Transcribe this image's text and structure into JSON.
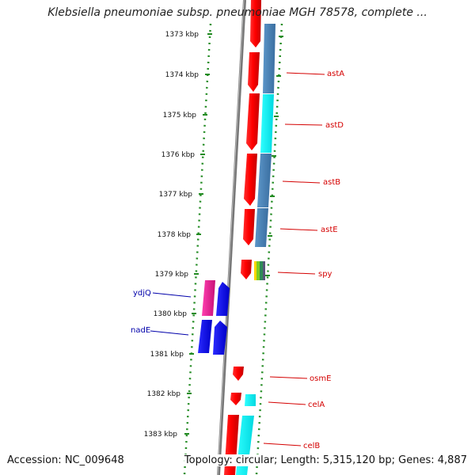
{
  "title": "Klebsiella pneumoniae subsp. pneumoniae MGH 78578, complete ...",
  "footer": {
    "accession": "Accession: NC_009648",
    "summary": "Topology: circular; Length: 5,315,120 bp; Genes: 4,887"
  },
  "ticks": [
    {
      "label": "1373 kbp"
    },
    {
      "label": "1374 kbp"
    },
    {
      "label": "1375 kbp"
    },
    {
      "label": "1376 kbp"
    },
    {
      "label": "1377 kbp"
    },
    {
      "label": "1378 kbp"
    },
    {
      "label": "1379 kbp"
    },
    {
      "label": "1380 kbp"
    },
    {
      "label": "1381 kbp"
    },
    {
      "label": "1382 kbp"
    },
    {
      "label": "1383 kbp"
    }
  ],
  "right_genes": [
    {
      "name": "astA"
    },
    {
      "name": "astD"
    },
    {
      "name": "astB"
    },
    {
      "name": "astE"
    },
    {
      "name": "spy"
    },
    {
      "name": "osmE"
    },
    {
      "name": "celA"
    },
    {
      "name": "celB"
    }
  ],
  "left_genes": [
    {
      "name": "ydjQ"
    },
    {
      "name": "nadE"
    }
  ],
  "colors": {
    "forward_gene": "#ff0000",
    "reverse_gene": "#0000ff",
    "label_right": "#d40000",
    "label_left": "#0000aa",
    "backbone": "#777777",
    "dotted_track": "#228b22",
    "feature_steelblue": "#4682b4",
    "feature_cyan": "#00ffff",
    "feature_magenta": "#e0208a"
  }
}
